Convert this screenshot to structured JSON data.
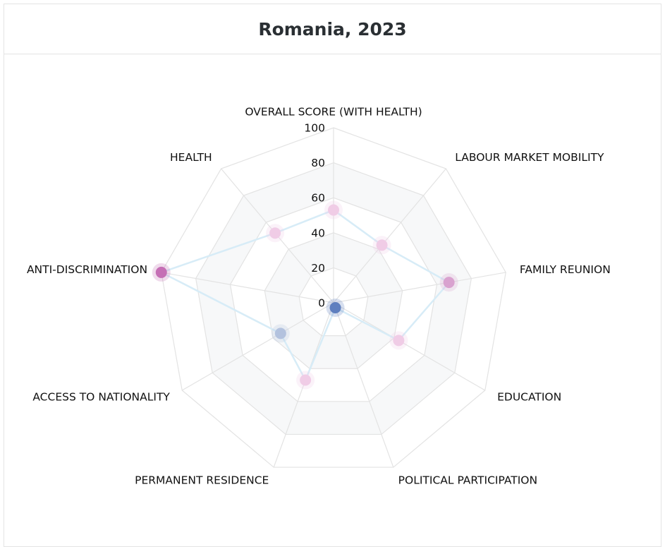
{
  "title": "Romania, 2023",
  "chart_data": {
    "type": "radar",
    "title": "Romania, 2023",
    "ylim": [
      0,
      100
    ],
    "ticks": [
      "0",
      "20",
      "40",
      "60",
      "80",
      "100"
    ],
    "tick_values": [
      0,
      20,
      40,
      60,
      80,
      100
    ],
    "categories": [
      "OVERALL SCORE (WITH HEALTH)",
      "LABOUR MARKET MOBILITY",
      "FAMILY REUNION",
      "EDUCATION",
      "POLITICAL PARTICIPATION",
      "PERMANENT RESIDENCE",
      "ACCESS TO NATIONALITY",
      "ANTI-DISCRIMINATION",
      "HEALTH"
    ],
    "series": [
      {
        "values": [
          53,
          43,
          67,
          43,
          3,
          47,
          35,
          100,
          52
        ]
      }
    ],
    "point_colors": [
      "#f0cce6",
      "#f0cce6",
      "#d9a2cf",
      "#f0cce6",
      "#5e7fbf",
      "#f0cce6",
      "#b3c2de",
      "#c56fb5",
      "#f0cce6"
    ],
    "line_color": "#d7ecf7",
    "grid": true
  }
}
